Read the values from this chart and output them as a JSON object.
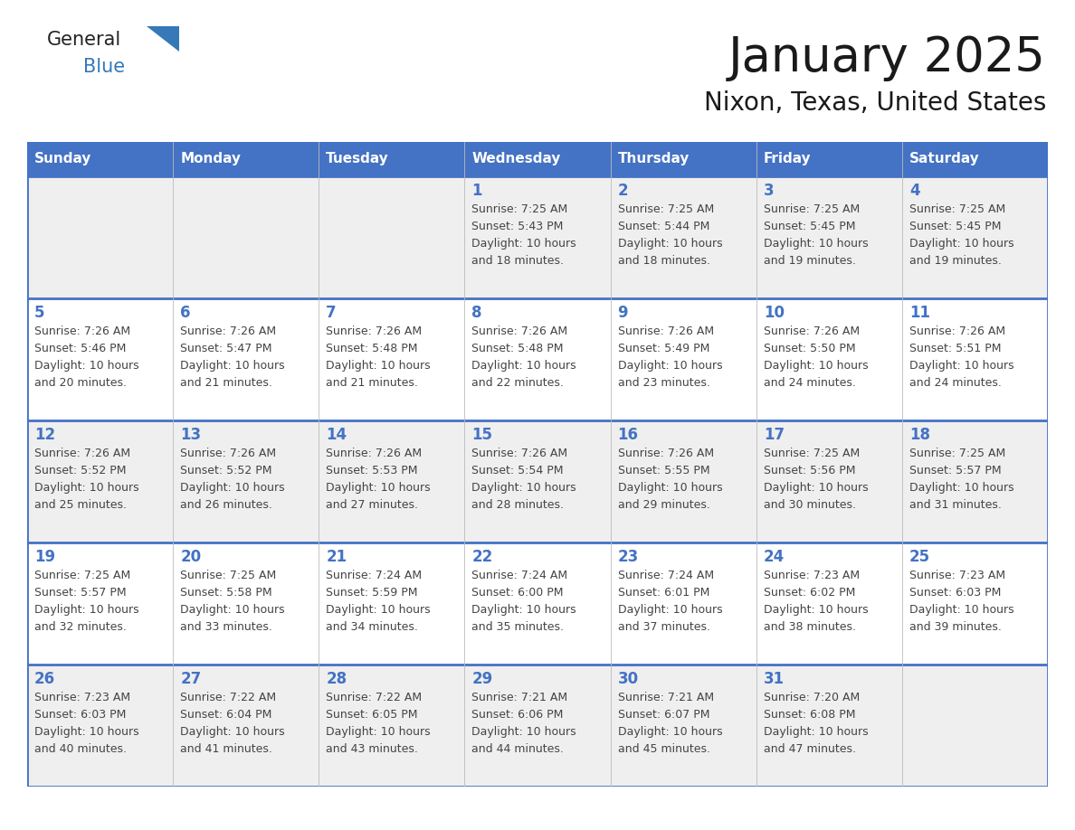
{
  "title": "January 2025",
  "subtitle": "Nixon, Texas, United States",
  "days_of_week": [
    "Sunday",
    "Monday",
    "Tuesday",
    "Wednesday",
    "Thursday",
    "Friday",
    "Saturday"
  ],
  "header_bg_color": "#4472C4",
  "header_text_color": "#FFFFFF",
  "cell_bg_even": "#EFEFEF",
  "cell_bg_odd": "#FFFFFF",
  "grid_line_color": "#4472C4",
  "day_number_color": "#4472C4",
  "cell_text_color": "#444444",
  "title_color": "#1a1a1a",
  "logo_general_color": "#222222",
  "logo_blue_color": "#3579B8",
  "weeks": [
    [
      {
        "date": "",
        "info": ""
      },
      {
        "date": "",
        "info": ""
      },
      {
        "date": "",
        "info": ""
      },
      {
        "date": "1",
        "info": "Sunrise: 7:25 AM\nSunset: 5:43 PM\nDaylight: 10 hours\nand 18 minutes."
      },
      {
        "date": "2",
        "info": "Sunrise: 7:25 AM\nSunset: 5:44 PM\nDaylight: 10 hours\nand 18 minutes."
      },
      {
        "date": "3",
        "info": "Sunrise: 7:25 AM\nSunset: 5:45 PM\nDaylight: 10 hours\nand 19 minutes."
      },
      {
        "date": "4",
        "info": "Sunrise: 7:25 AM\nSunset: 5:45 PM\nDaylight: 10 hours\nand 19 minutes."
      }
    ],
    [
      {
        "date": "5",
        "info": "Sunrise: 7:26 AM\nSunset: 5:46 PM\nDaylight: 10 hours\nand 20 minutes."
      },
      {
        "date": "6",
        "info": "Sunrise: 7:26 AM\nSunset: 5:47 PM\nDaylight: 10 hours\nand 21 minutes."
      },
      {
        "date": "7",
        "info": "Sunrise: 7:26 AM\nSunset: 5:48 PM\nDaylight: 10 hours\nand 21 minutes."
      },
      {
        "date": "8",
        "info": "Sunrise: 7:26 AM\nSunset: 5:48 PM\nDaylight: 10 hours\nand 22 minutes."
      },
      {
        "date": "9",
        "info": "Sunrise: 7:26 AM\nSunset: 5:49 PM\nDaylight: 10 hours\nand 23 minutes."
      },
      {
        "date": "10",
        "info": "Sunrise: 7:26 AM\nSunset: 5:50 PM\nDaylight: 10 hours\nand 24 minutes."
      },
      {
        "date": "11",
        "info": "Sunrise: 7:26 AM\nSunset: 5:51 PM\nDaylight: 10 hours\nand 24 minutes."
      }
    ],
    [
      {
        "date": "12",
        "info": "Sunrise: 7:26 AM\nSunset: 5:52 PM\nDaylight: 10 hours\nand 25 minutes."
      },
      {
        "date": "13",
        "info": "Sunrise: 7:26 AM\nSunset: 5:52 PM\nDaylight: 10 hours\nand 26 minutes."
      },
      {
        "date": "14",
        "info": "Sunrise: 7:26 AM\nSunset: 5:53 PM\nDaylight: 10 hours\nand 27 minutes."
      },
      {
        "date": "15",
        "info": "Sunrise: 7:26 AM\nSunset: 5:54 PM\nDaylight: 10 hours\nand 28 minutes."
      },
      {
        "date": "16",
        "info": "Sunrise: 7:26 AM\nSunset: 5:55 PM\nDaylight: 10 hours\nand 29 minutes."
      },
      {
        "date": "17",
        "info": "Sunrise: 7:25 AM\nSunset: 5:56 PM\nDaylight: 10 hours\nand 30 minutes."
      },
      {
        "date": "18",
        "info": "Sunrise: 7:25 AM\nSunset: 5:57 PM\nDaylight: 10 hours\nand 31 minutes."
      }
    ],
    [
      {
        "date": "19",
        "info": "Sunrise: 7:25 AM\nSunset: 5:57 PM\nDaylight: 10 hours\nand 32 minutes."
      },
      {
        "date": "20",
        "info": "Sunrise: 7:25 AM\nSunset: 5:58 PM\nDaylight: 10 hours\nand 33 minutes."
      },
      {
        "date": "21",
        "info": "Sunrise: 7:24 AM\nSunset: 5:59 PM\nDaylight: 10 hours\nand 34 minutes."
      },
      {
        "date": "22",
        "info": "Sunrise: 7:24 AM\nSunset: 6:00 PM\nDaylight: 10 hours\nand 35 minutes."
      },
      {
        "date": "23",
        "info": "Sunrise: 7:24 AM\nSunset: 6:01 PM\nDaylight: 10 hours\nand 37 minutes."
      },
      {
        "date": "24",
        "info": "Sunrise: 7:23 AM\nSunset: 6:02 PM\nDaylight: 10 hours\nand 38 minutes."
      },
      {
        "date": "25",
        "info": "Sunrise: 7:23 AM\nSunset: 6:03 PM\nDaylight: 10 hours\nand 39 minutes."
      }
    ],
    [
      {
        "date": "26",
        "info": "Sunrise: 7:23 AM\nSunset: 6:03 PM\nDaylight: 10 hours\nand 40 minutes."
      },
      {
        "date": "27",
        "info": "Sunrise: 7:22 AM\nSunset: 6:04 PM\nDaylight: 10 hours\nand 41 minutes."
      },
      {
        "date": "28",
        "info": "Sunrise: 7:22 AM\nSunset: 6:05 PM\nDaylight: 10 hours\nand 43 minutes."
      },
      {
        "date": "29",
        "info": "Sunrise: 7:21 AM\nSunset: 6:06 PM\nDaylight: 10 hours\nand 44 minutes."
      },
      {
        "date": "30",
        "info": "Sunrise: 7:21 AM\nSunset: 6:07 PM\nDaylight: 10 hours\nand 45 minutes."
      },
      {
        "date": "31",
        "info": "Sunrise: 7:20 AM\nSunset: 6:08 PM\nDaylight: 10 hours\nand 47 minutes."
      },
      {
        "date": "",
        "info": ""
      }
    ]
  ]
}
